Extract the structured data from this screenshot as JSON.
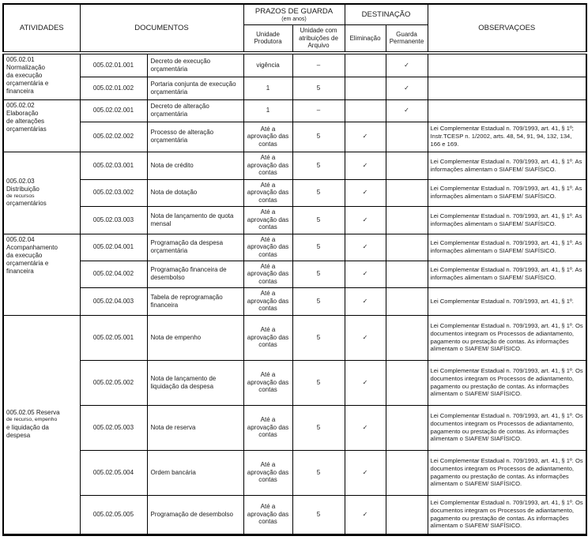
{
  "header": {
    "atividades": "ATIVIDADES",
    "documentos": "DOCUMENTOS",
    "prazos_title": "PRAZOS DE GUARDA",
    "prazos_sub": "(em anos)",
    "unidade_produtora": "Unidade Produtora",
    "unidade_arquivo": "Unidade com atribuições de Arquivo",
    "destinacao": "DESTINAÇÃO",
    "eliminacao": "Eliminação",
    "guarda_permanente": "Guarda Permanente",
    "observacoes": "OBSERVAÇOES"
  },
  "check_glyph": "✓",
  "groups": [
    {
      "valign": "top",
      "lines": [
        {
          "text": "005.02.01",
          "small": false
        },
        {
          "text": "Normalização",
          "small": false
        },
        {
          "text": "da execução",
          "small": false
        },
        {
          "text": "orçamentária e",
          "small": false
        },
        {
          "text": "financeira",
          "small": false
        }
      ],
      "rows": [
        {
          "code": "005.02.01.001",
          "document": "Decreto de execução orçamentária",
          "produtora": "vigência",
          "arquivo": "–",
          "eliminacao": "",
          "guarda": "✓",
          "observacao": ""
        },
        {
          "code": "005.02.01.002",
          "document": "Portaria conjunta de execução orçamentária",
          "produtora": "1",
          "arquivo": "5",
          "eliminacao": "",
          "guarda": "✓",
          "observacao": ""
        }
      ]
    },
    {
      "valign": "top",
      "lines": [
        {
          "text": "005.02.02",
          "small": false
        },
        {
          "text": "Elaboração",
          "small": false
        },
        {
          "text": "de alterações",
          "small": false
        },
        {
          "text": "orçamentárias",
          "small": false
        }
      ],
      "rows": [
        {
          "code": "005.02.02.001",
          "document": "Decreto de alteração orçamentária",
          "produtora": "1",
          "arquivo": "–",
          "eliminacao": "",
          "guarda": "✓",
          "observacao": ""
        },
        {
          "code": "005.02.02.002",
          "document": "Processo de alteração orçamentária",
          "produtora": "Até a aprovação das contas",
          "arquivo": "5",
          "eliminacao": "✓",
          "guarda": "",
          "observacao": "Lei Complementar Estadual n. 709/1993, art. 41, § 1º; Instr.TCESP n. 1/2002, arts. 48, 54, 91, 94, 132, 134, 166 e 169."
        }
      ]
    },
    {
      "valign": "middle",
      "lines": [
        {
          "text": "005.02.03",
          "small": false
        },
        {
          "text": "Distribuição",
          "small": false
        },
        {
          "text": "de recursos",
          "small": true
        },
        {
          "text": "orçamentários",
          "small": false
        }
      ],
      "rows": [
        {
          "code": "005.02.03.001",
          "document": "Nota de crédito",
          "produtora": "Até a aprovação das contas",
          "arquivo": "5",
          "eliminacao": "✓",
          "guarda": "",
          "observacao": "Lei Complementar Estadual n. 709/1993, art. 41, § 1º. As informações alimentam o SIAFEM/ SIAFÍSICO."
        },
        {
          "code": "005.02.03.002",
          "document": "Nota de dotação",
          "produtora": "Até a aprovação das contas",
          "arquivo": "5",
          "eliminacao": "✓",
          "guarda": "",
          "observacao": "Lei Complementar Estadual n. 709/1993, art. 41, § 1º. As informações alimentam o SIAFEM/ SIAFÍSICO."
        },
        {
          "code": "005.02.03.003",
          "document": "Nota de lançamento de quota mensal",
          "produtora": "Até a aprovação das contas",
          "arquivo": "5",
          "eliminacao": "✓",
          "guarda": "",
          "observacao": "Lei Complementar Estadual n. 709/1993, art. 41, § 1º. As informações alimentam o SIAFEM/ SIAFÍSICO."
        }
      ]
    },
    {
      "valign": "top",
      "lines": [
        {
          "text": "005.02.04",
          "small": false
        },
        {
          "text": "Acompanhamento",
          "small": false
        },
        {
          "text": "da execução",
          "small": false
        },
        {
          "text": "orçamentária e",
          "small": false
        },
        {
          "text": "financeira",
          "small": false
        }
      ],
      "rows": [
        {
          "code": "005.02.04.001",
          "document": "Programação da despesa orçamentária",
          "produtora": "Até a aprovação das contas",
          "arquivo": "5",
          "eliminacao": "✓",
          "guarda": "",
          "observacao": "Lei Complementar Estadual n. 709/1993, art. 41, § 1º. As informações alimentam o SIAFEM/ SIAFÍSICO."
        },
        {
          "code": "005.02.04.002",
          "document": "Programação financeira de desembolso",
          "produtora": "Até a aprovação das contas",
          "arquivo": "5",
          "eliminacao": "✓",
          "guarda": "",
          "observacao": "Lei Complementar Estadual n. 709/1993, art. 41, § 1º. As informações alimentam o SIAFEM/ SIAFÍSICO."
        },
        {
          "code": "005.02.04.003",
          "document": "Tabela de reprogramação financeira",
          "produtora": "Até a aprovação das contas",
          "arquivo": "5",
          "eliminacao": "✓",
          "guarda": "",
          "observacao": "Lei Complementar Estadual n. 709/1993, art. 41, § 1º."
        }
      ]
    },
    {
      "valign": "middle",
      "lines": [
        {
          "text": "005.02.05 Reserva",
          "small": false
        },
        {
          "text": "de recurso, empenho",
          "small": true
        },
        {
          "text": "e liquidação da",
          "small": false
        },
        {
          "text": "despesa",
          "small": false
        }
      ],
      "rows": [
        {
          "code": "005.02.05.001",
          "document": "Nota de empenho",
          "produtora": "Até a aprovação das contas",
          "arquivo": "5",
          "eliminacao": "✓",
          "guarda": "",
          "observacao": "Lei Complementar Estadual n. 709/1993, art. 41, § 1º. Os documentos integram os Processos de adiantamento, pagamento ou prestação de contas. As informações alimentam o SIAFEM/ SIAFÍSICO."
        },
        {
          "code": "005.02.05.002",
          "document": "Nota de lançamento de liquidação da despesa",
          "produtora": "Até a aprovação das contas",
          "arquivo": "5",
          "eliminacao": "✓",
          "guarda": "",
          "observacao": "Lei Complementar Estadual n. 709/1993, art. 41, § 1º. Os documentos integram os Processos de adiantamento, pagamento ou prestação de contas. As informações alimentam o SIAFEM/ SIAFÍSICO."
        },
        {
          "code": "005.02.05.003",
          "document": "Nota de reserva",
          "produtora": "Até a aprovação das contas",
          "arquivo": "5",
          "eliminacao": "✓",
          "guarda": "",
          "observacao": "Lei Complementar Estadual n. 709/1993, art. 41, § 1º. Os documentos integram os Processos de adiantamento, pagamento ou prestação de contas. As informações alimentam o SIAFEM/ SIAFÍSICO."
        },
        {
          "code": "005.02.05.004",
          "document": "Ordem bancária",
          "produtora": "Até a aprovação das contas",
          "arquivo": "5",
          "eliminacao": "✓",
          "guarda": "",
          "observacao": "Lei Complementar Estadual n. 709/1993, art. 41, § 1º. Os documentos integram os Processos de adiantamento, pagamento ou prestação de contas. As informações alimentam o SIAFEM/ SIAFÍSICO."
        },
        {
          "code": "005.02.05.005",
          "document": "Programação de desembolso",
          "produtora": "Até a aprovação das contas",
          "arquivo": "5",
          "eliminacao": "✓",
          "guarda": "",
          "observacao": "Lei Complementar Estadual n. 709/1993, art. 41, § 1º. Os documentos integram os Processos de adiantamento, pagamento ou prestação de contas. As informações alimentam o SIAFEM/ SIAFÍSICO."
        }
      ]
    }
  ]
}
